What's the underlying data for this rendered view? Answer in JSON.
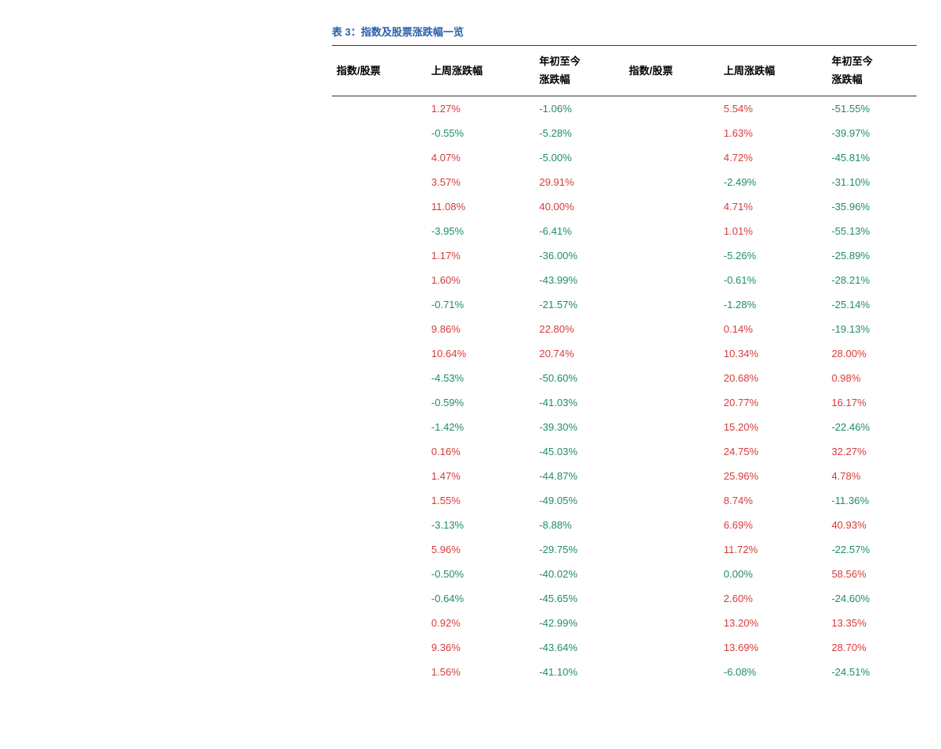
{
  "title": {
    "text": "表 3：指数及股票涨跌幅一览",
    "color": "#2b5ea8",
    "fontsize": 13
  },
  "colors": {
    "positive": "#d83b3a",
    "negative": "#1f8f5e",
    "zero": "#1f8f5e",
    "header_text": "#000000",
    "title": "#2b5ea8",
    "border": "#333333",
    "background": "#ffffff"
  },
  "headers": {
    "col1": "指数/股票",
    "col2": "上周涨跌幅",
    "col3": "年初至今\n涨跌幅",
    "col4": "指数/股票",
    "col5": "上周涨跌幅",
    "col6": "年初至今\n涨跌幅"
  },
  "rows": [
    {
      "l_week": "1.27%",
      "l_ytd": "-1.06%",
      "r_week": "5.54%",
      "r_ytd": "-51.55%"
    },
    {
      "l_week": "-0.55%",
      "l_ytd": "-5.28%",
      "r_week": "1.63%",
      "r_ytd": "-39.97%"
    },
    {
      "l_week": "4.07%",
      "l_ytd": "-5.00%",
      "r_week": "4.72%",
      "r_ytd": "-45.81%"
    },
    {
      "l_week": "3.57%",
      "l_ytd": "29.91%",
      "r_week": "-2.49%",
      "r_ytd": "-31.10%"
    },
    {
      "l_week": "11.08%",
      "l_ytd": "40.00%",
      "r_week": "4.71%",
      "r_ytd": "-35.96%"
    },
    {
      "l_week": "-3.95%",
      "l_ytd": "-6.41%",
      "r_week": "1.01%",
      "r_ytd": "-55.13%"
    },
    {
      "l_week": "1.17%",
      "l_ytd": "-36.00%",
      "r_week": "-5.26%",
      "r_ytd": "-25.89%"
    },
    {
      "l_week": "1.60%",
      "l_ytd": "-43.99%",
      "r_week": "-0.61%",
      "r_ytd": "-28.21%"
    },
    {
      "l_week": "-0.71%",
      "l_ytd": "-21.57%",
      "r_week": "-1.28%",
      "r_ytd": "-25.14%"
    },
    {
      "l_week": "9.86%",
      "l_ytd": "22.80%",
      "r_week": "0.14%",
      "r_ytd": "-19.13%"
    },
    {
      "l_week": "10.64%",
      "l_ytd": "20.74%",
      "r_week": "10.34%",
      "r_ytd": "28.00%"
    },
    {
      "l_week": "-4.53%",
      "l_ytd": "-50.60%",
      "r_week": "20.68%",
      "r_ytd": "0.98%"
    },
    {
      "l_week": "-0.59%",
      "l_ytd": "-41.03%",
      "r_week": "20.77%",
      "r_ytd": "16.17%"
    },
    {
      "l_week": "-1.42%",
      "l_ytd": "-39.30%",
      "r_week": "15.20%",
      "r_ytd": "-22.46%"
    },
    {
      "l_week": "0.16%",
      "l_ytd": "-45.03%",
      "r_week": "24.75%",
      "r_ytd": "32.27%"
    },
    {
      "l_week": "1.47%",
      "l_ytd": "-44.87%",
      "r_week": "25.96%",
      "r_ytd": "4.78%"
    },
    {
      "l_week": "1.55%",
      "l_ytd": "-49.05%",
      "r_week": "8.74%",
      "r_ytd": "-11.36%"
    },
    {
      "l_week": "-3.13%",
      "l_ytd": "-8.88%",
      "r_week": "6.69%",
      "r_ytd": "40.93%"
    },
    {
      "l_week": "5.96%",
      "l_ytd": "-29.75%",
      "r_week": "11.72%",
      "r_ytd": "-22.57%"
    },
    {
      "l_week": "-0.50%",
      "l_ytd": "-40.02%",
      "r_week": "0.00%",
      "r_ytd": "58.56%"
    },
    {
      "l_week": "-0.64%",
      "l_ytd": "-45.65%",
      "r_week": "2.60%",
      "r_ytd": "-24.60%"
    },
    {
      "l_week": "0.92%",
      "l_ytd": "-42.99%",
      "r_week": "13.20%",
      "r_ytd": "13.35%"
    },
    {
      "l_week": "9.36%",
      "l_ytd": "-43.64%",
      "r_week": "13.69%",
      "r_ytd": "28.70%"
    },
    {
      "l_week": "1.56%",
      "l_ytd": "-41.10%",
      "r_week": "-6.08%",
      "r_ytd": "-24.51%"
    }
  ],
  "column_widths_pct": [
    15,
    16,
    19,
    15,
    16,
    19
  ]
}
